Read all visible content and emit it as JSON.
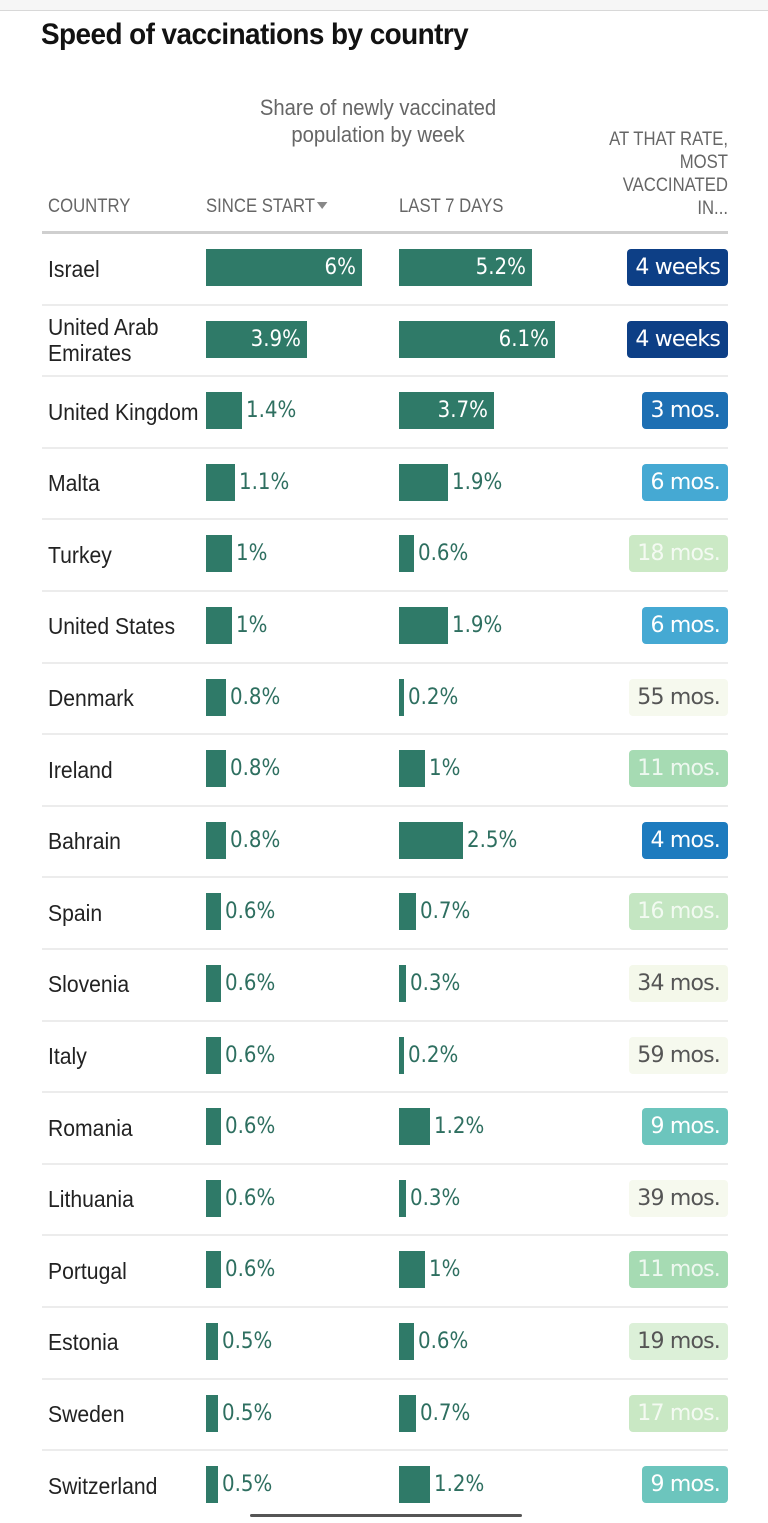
{
  "title": "Speed of vaccinations by country",
  "subtitle": "Share of newly vaccinated population by week",
  "headers": {
    "country": "COUNTRY",
    "since_start": "SINCE START",
    "last_7_days": "LAST 7 DAYS",
    "rate": "AT THAT RATE, MOST VACCINATED IN..."
  },
  "sort_icon": "triangle-down-icon",
  "colors": {
    "bar": "#2f7a68",
    "bar_label": "#2e6f60",
    "badge_dark_navy": "#0d3f86",
    "badge_blue": "#1d6fb3",
    "badge_sky": "#45a9d3",
    "badge_teal": "#6cc5bd",
    "badge_green": "#a6dbb3",
    "badge_pale_green": "#cbe9c5",
    "badge_lightest": "#f6f9ee"
  },
  "rows": [
    {
      "country": "Israel",
      "since": "6%",
      "since_v": 6.0,
      "last": "5.2%",
      "last_v": 5.2,
      "rate": "4 weeks",
      "bg": "#0d3f86",
      "fg": "#ffffff"
    },
    {
      "country": "United Arab Emirates",
      "since": "3.9%",
      "since_v": 3.9,
      "last": "6.1%",
      "last_v": 6.1,
      "rate": "4 weeks",
      "bg": "#0d3f86",
      "fg": "#ffffff"
    },
    {
      "country": "United Kingdom",
      "since": "1.4%",
      "since_v": 1.4,
      "last": "3.7%",
      "last_v": 3.7,
      "rate": "3 mos.",
      "bg": "#1d6fb3",
      "fg": "#ffffff"
    },
    {
      "country": "Malta",
      "since": "1.1%",
      "since_v": 1.1,
      "last": "1.9%",
      "last_v": 1.9,
      "rate": "6 mos.",
      "bg": "#45a9d3",
      "fg": "#ffffff"
    },
    {
      "country": "Turkey",
      "since": "1%",
      "since_v": 1.0,
      "last": "0.6%",
      "last_v": 0.6,
      "rate": "18 mos.",
      "bg": "#cbe9c5",
      "fg": "#f4faf2"
    },
    {
      "country": "United States",
      "since": "1%",
      "since_v": 1.0,
      "last": "1.9%",
      "last_v": 1.9,
      "rate": "6 mos.",
      "bg": "#45a9d3",
      "fg": "#ffffff"
    },
    {
      "country": "Denmark",
      "since": "0.8%",
      "since_v": 0.8,
      "last": "0.2%",
      "last_v": 0.2,
      "rate": "55 mos.",
      "bg": "#f6f9ee",
      "fg": "#555555"
    },
    {
      "country": "Ireland",
      "since": "0.8%",
      "since_v": 0.8,
      "last": "1%",
      "last_v": 1.0,
      "rate": "11 mos.",
      "bg": "#a6dbb3",
      "fg": "#eef8f0"
    },
    {
      "country": "Bahrain",
      "since": "0.8%",
      "since_v": 0.8,
      "last": "2.5%",
      "last_v": 2.5,
      "rate": "4 mos.",
      "bg": "#1d7bbf",
      "fg": "#ffffff"
    },
    {
      "country": "Spain",
      "since": "0.6%",
      "since_v": 0.6,
      "last": "0.7%",
      "last_v": 0.7,
      "rate": "16 mos.",
      "bg": "#c4e6c2",
      "fg": "#f2faf1"
    },
    {
      "country": "Slovenia",
      "since": "0.6%",
      "since_v": 0.6,
      "last": "0.3%",
      "last_v": 0.3,
      "rate": "34 mos.",
      "bg": "#f4f8ea",
      "fg": "#555555"
    },
    {
      "country": "Italy",
      "since": "0.6%",
      "since_v": 0.6,
      "last": "0.2%",
      "last_v": 0.2,
      "rate": "59 mos.",
      "bg": "#f6f9ee",
      "fg": "#555555"
    },
    {
      "country": "Romania",
      "since": "0.6%",
      "since_v": 0.6,
      "last": "1.2%",
      "last_v": 1.2,
      "rate": "9 mos.",
      "bg": "#6cc5bd",
      "fg": "#ffffff"
    },
    {
      "country": "Lithuania",
      "since": "0.6%",
      "since_v": 0.6,
      "last": "0.3%",
      "last_v": 0.3,
      "rate": "39 mos.",
      "bg": "#f6f9ee",
      "fg": "#555555"
    },
    {
      "country": "Portugal",
      "since": "0.6%",
      "since_v": 0.6,
      "last": "1%",
      "last_v": 1.0,
      "rate": "11 mos.",
      "bg": "#a6dbb3",
      "fg": "#eef8f0"
    },
    {
      "country": "Estonia",
      "since": "0.5%",
      "since_v": 0.5,
      "last": "0.6%",
      "last_v": 0.6,
      "rate": "19 mos.",
      "bg": "#dcf0d8",
      "fg": "#555555"
    },
    {
      "country": "Sweden",
      "since": "0.5%",
      "since_v": 0.5,
      "last": "0.7%",
      "last_v": 0.7,
      "rate": "17 mos.",
      "bg": "#c9e8c4",
      "fg": "#f4faf2"
    },
    {
      "country": "Switzerland",
      "since": "0.5%",
      "since_v": 0.5,
      "last": "1.2%",
      "last_v": 1.2,
      "rate": "9 mos.",
      "bg": "#6cc5bd",
      "fg": "#ffffff"
    }
  ],
  "chart_data": {
    "type": "table",
    "title": "Speed of vaccinations by country",
    "subtitle": "Share of newly vaccinated population by week",
    "columns": [
      "COUNTRY",
      "SINCE START",
      "LAST 7 DAYS",
      "AT THAT RATE, MOST VACCINATED IN..."
    ],
    "categories": [
      "Israel",
      "United Arab Emirates",
      "United Kingdom",
      "Malta",
      "Turkey",
      "United States",
      "Denmark",
      "Ireland",
      "Bahrain",
      "Spain",
      "Slovenia",
      "Italy",
      "Romania",
      "Lithuania",
      "Portugal",
      "Estonia",
      "Sweden",
      "Switzerland"
    ],
    "series": [
      {
        "name": "Since start (%)",
        "values": [
          6,
          3.9,
          1.4,
          1.1,
          1,
          1,
          0.8,
          0.8,
          0.8,
          0.6,
          0.6,
          0.6,
          0.6,
          0.6,
          0.6,
          0.5,
          0.5,
          0.5
        ]
      },
      {
        "name": "Last 7 days (%)",
        "values": [
          5.2,
          6.1,
          3.7,
          1.9,
          0.6,
          1.9,
          0.2,
          1,
          2.5,
          0.7,
          0.3,
          0.2,
          1.2,
          0.3,
          1,
          0.6,
          0.7,
          1.2
        ]
      }
    ],
    "rate_text": [
      "4 weeks",
      "4 weeks",
      "3 mos.",
      "6 mos.",
      "18 mos.",
      "6 mos.",
      "55 mos.",
      "11 mos.",
      "4 mos.",
      "16 mos.",
      "34 mos.",
      "59 mos.",
      "9 mos.",
      "39 mos.",
      "11 mos.",
      "19 mos.",
      "17 mos.",
      "9 mos."
    ],
    "sorted_by": "SINCE START (descending)"
  }
}
